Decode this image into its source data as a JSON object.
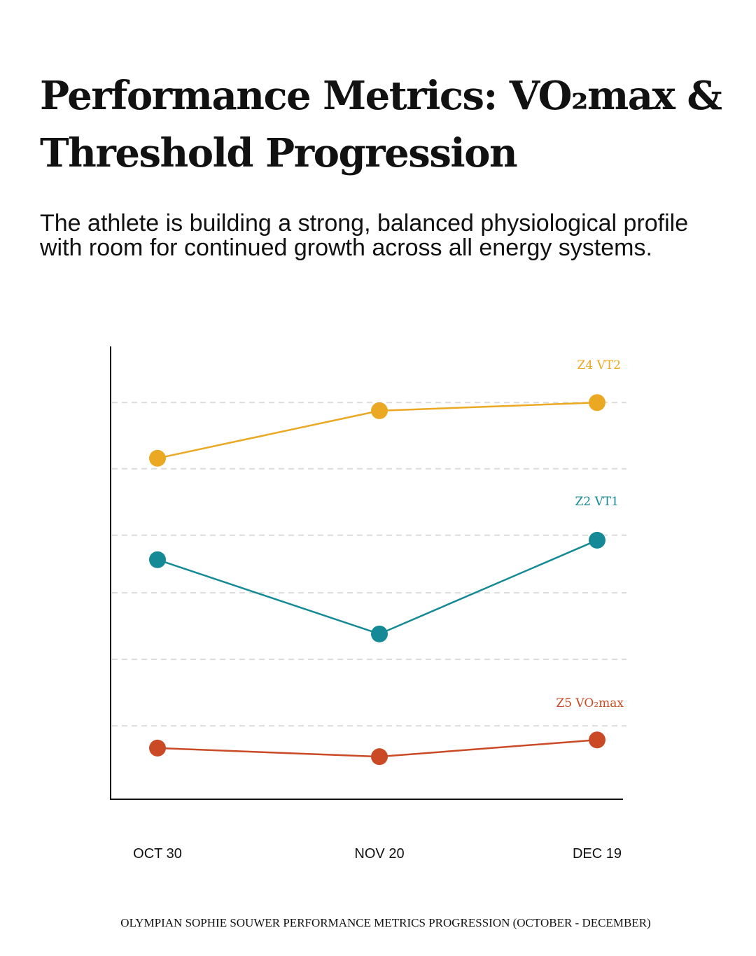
{
  "title": "Performance Metrics: VO₂max & Threshold Progression",
  "subtitle": "The athlete is building a strong, balanced physiological profile with room for continued growth across all energy systems.",
  "footer": "OLYMPIAN SOPHIE SOUWER PERFORMANCE METRICS PROGRESSION (OCTOBER - DECEMBER)",
  "chart_data": {
    "type": "line",
    "title": "",
    "xlabel": "",
    "ylabel": "",
    "categories": [
      "OCT 30",
      "NOV 20",
      "DEC 19"
    ],
    "y_axis": "unlabeled, relative scale",
    "ylim": [
      0,
      100
    ],
    "grid": "horizontal dashed",
    "gridlines": [
      87.6,
      73.0,
      58.3,
      45.6,
      30.9,
      16.2
    ],
    "legend": "inline labels at right end of each line",
    "series": [
      {
        "name": "Z4 VT2",
        "color": "#EBA822",
        "values": [
          75.3,
          85.8,
          87.6
        ]
      },
      {
        "name": "Z2 VT1",
        "color": "#158A96",
        "values": [
          52.9,
          36.5,
          57.2
        ]
      },
      {
        "name": "Z5 VO₂max",
        "color": "#C94A25",
        "values": [
          11.3,
          9.4,
          13.1
        ]
      }
    ]
  }
}
